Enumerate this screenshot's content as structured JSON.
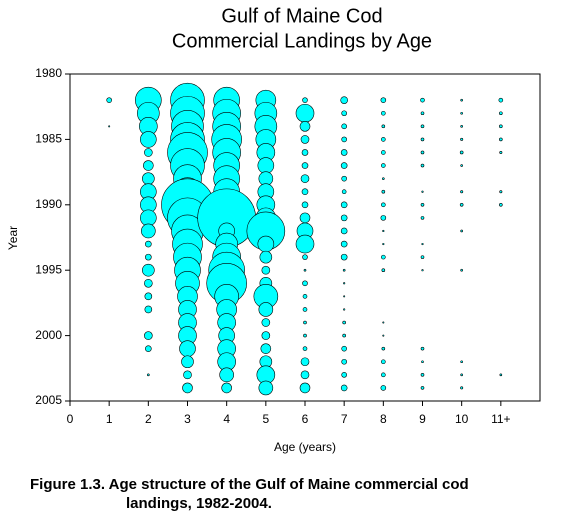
{
  "chart_data": {
    "type": "bubble",
    "title": [
      "Gulf of Maine Cod",
      "Commercial Landings by Age"
    ],
    "x_label": "Age (years)",
    "y_label": "Year",
    "xlim": [
      0,
      12
    ],
    "xticks": [
      0,
      1,
      2,
      3,
      4,
      5,
      6,
      7,
      8,
      9,
      10,
      {
        "value": 11,
        "label": "11+"
      }
    ],
    "ylim": [
      2005,
      1980
    ],
    "yticks": [
      1980,
      1985,
      1990,
      1995,
      2000,
      2005
    ],
    "color": "#00ffff",
    "y": [
      1982,
      1983,
      1984,
      1985,
      1986,
      1987,
      1988,
      1989,
      1990,
      1991,
      1992,
      1993,
      1994,
      1995,
      1996,
      1997,
      1998,
      1999,
      2000,
      2001,
      2002,
      2003,
      2004
    ],
    "series": [
      {
        "x": 1,
        "sizes": [
          2.5,
          0,
          0.7,
          0,
          0,
          0,
          0,
          0,
          0,
          0,
          0,
          0,
          0,
          0,
          0,
          0,
          0,
          0,
          0,
          0,
          0,
          0,
          0
        ]
      },
      {
        "x": 2,
        "sizes": [
          13,
          11,
          9,
          8,
          4,
          5,
          6,
          8,
          8,
          8,
          7,
          3,
          3,
          6,
          4,
          3.5,
          3.5,
          0,
          4,
          3,
          0,
          1,
          0
        ]
      },
      {
        "x": 3,
        "sizes": [
          17,
          17,
          16,
          17,
          20,
          17,
          14,
          14,
          26,
          20,
          16,
          15,
          14,
          13,
          12,
          10,
          9,
          9,
          9,
          8,
          6,
          4,
          5
        ]
      },
      {
        "x": 4,
        "sizes": [
          13,
          14,
          14,
          15,
          14,
          13,
          13,
          13,
          11,
          29,
          8,
          11,
          14,
          18,
          20,
          12,
          10,
          9,
          8,
          9,
          9,
          7,
          5
        ]
      },
      {
        "x": 5,
        "sizes": [
          10,
          11,
          11,
          10,
          9,
          8,
          7,
          8,
          9,
          10,
          19,
          8,
          6,
          4,
          6,
          12,
          7,
          4,
          4,
          5,
          6,
          9,
          7
        ]
      },
      {
        "x": 6,
        "sizes": [
          2.5,
          9,
          5,
          4,
          3,
          3,
          4,
          3,
          3,
          5,
          8,
          9,
          2.5,
          1,
          2.5,
          2,
          2,
          1.5,
          1.5,
          2,
          4,
          4,
          5
        ]
      },
      {
        "x": 7,
        "sizes": [
          3.5,
          2.5,
          2.5,
          2.5,
          3,
          3,
          2.5,
          2,
          3,
          3,
          3,
          3,
          3,
          1,
          0.8,
          0.7,
          0.8,
          1.5,
          1.5,
          2.5,
          2.5,
          2.5,
          3
        ]
      },
      {
        "x": 8,
        "sizes": [
          2.5,
          2,
          1.5,
          2,
          2,
          2,
          1,
          1.5,
          2,
          2.5,
          0.8,
          0.8,
          2,
          1.5,
          0,
          0,
          0,
          0.7,
          0.7,
          1.5,
          2,
          2,
          2.5
        ]
      },
      {
        "x": 9,
        "sizes": [
          2,
          1.5,
          1.5,
          1.5,
          1.5,
          1.5,
          0,
          0.8,
          1.5,
          1.5,
          0,
          0.8,
          1.5,
          0.8,
          0,
          0,
          0,
          0,
          0,
          1.5,
          1,
          1.5,
          1.5
        ]
      },
      {
        "x": 10,
        "sizes": [
          1,
          1,
          1,
          1.2,
          1.5,
          1,
          0,
          1.2,
          1.5,
          0,
          1,
          0,
          0,
          1,
          0,
          0,
          0,
          0,
          0,
          0,
          1,
          1,
          1.2
        ]
      },
      {
        "x": 11,
        "sizes": [
          2,
          1.5,
          1.5,
          1.5,
          1.2,
          0,
          0,
          1.2,
          1.5,
          0,
          0,
          0,
          0,
          0,
          0,
          0,
          0,
          0,
          0,
          0,
          0,
          1,
          0
        ]
      }
    ]
  },
  "caption": [
    "Figure 1.3.  Age structure of the Gulf of Maine commercial cod",
    "landings, 1982-2004."
  ]
}
